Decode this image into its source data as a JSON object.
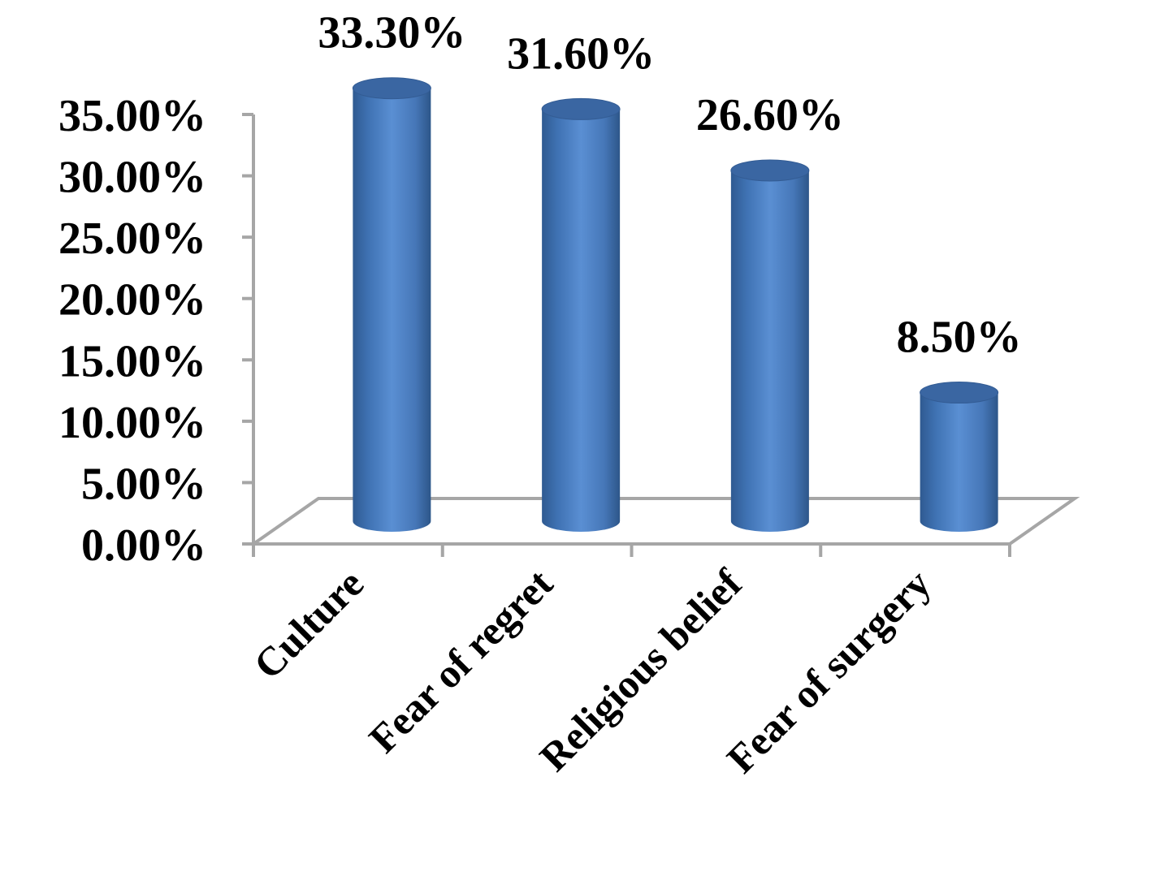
{
  "chart_data": {
    "type": "bar",
    "style": "3d-cylinder",
    "categories": [
      "Culture",
      "Fear of regret",
      "Religious belief",
      "Fear of surgery"
    ],
    "values": [
      33.3,
      31.6,
      26.6,
      8.5
    ],
    "data_labels": [
      "33.30%",
      "31.60%",
      "26.60%",
      "8.50%"
    ],
    "y_ticks": [
      0,
      5,
      10,
      15,
      20,
      25,
      30,
      35
    ],
    "y_tick_labels": [
      "0.00%",
      "5.00%",
      "10.00%",
      "15.00%",
      "20.00%",
      "25.00%",
      "30.00%",
      "35.00%"
    ],
    "ylim": [
      0,
      35
    ],
    "unit": "%",
    "grid": false,
    "legend": "none",
    "bar_color": "#4F81BD",
    "axis_color": "#A6A6A6"
  }
}
